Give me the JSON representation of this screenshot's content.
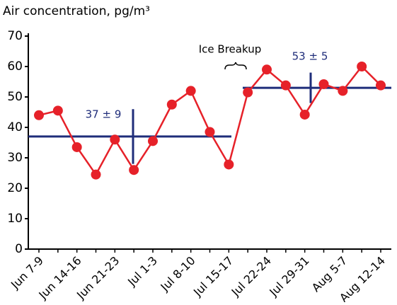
{
  "chart_data": {
    "type": "line",
    "title": "Air concentration, pg/m³",
    "categories": [
      "Jun 7-9",
      null,
      "Jun 14-16",
      null,
      "Jun 21-23",
      null,
      "Jul 1-3",
      null,
      "Jul 8-10",
      null,
      "Jul 15-17",
      null,
      "Jul 22-24",
      null,
      "Jul 29-31",
      null,
      "Aug 5-7",
      null,
      "Aug 12-14"
    ],
    "series": [
      {
        "name": "Air concentration",
        "color": "#e62129",
        "values": [
          44,
          45.5,
          33.5,
          24.5,
          36,
          26,
          35.5,
          47.5,
          52,
          38.5,
          27.8,
          51.5,
          59,
          53.8,
          44.2,
          54.2,
          52,
          60,
          53.8
        ]
      }
    ],
    "means": [
      {
        "label": "37 ± 9",
        "value": 37,
        "error": 9,
        "color": "#1f2d7a"
      },
      {
        "label": "53 ± 5",
        "value": 53,
        "error": 5,
        "color": "#1f2d7a"
      }
    ],
    "annotation": "Ice Breakup",
    "ylim": [
      0,
      70
    ],
    "yticks": [
      0,
      10,
      20,
      30,
      40,
      50,
      60,
      70
    ],
    "grid": false
  }
}
